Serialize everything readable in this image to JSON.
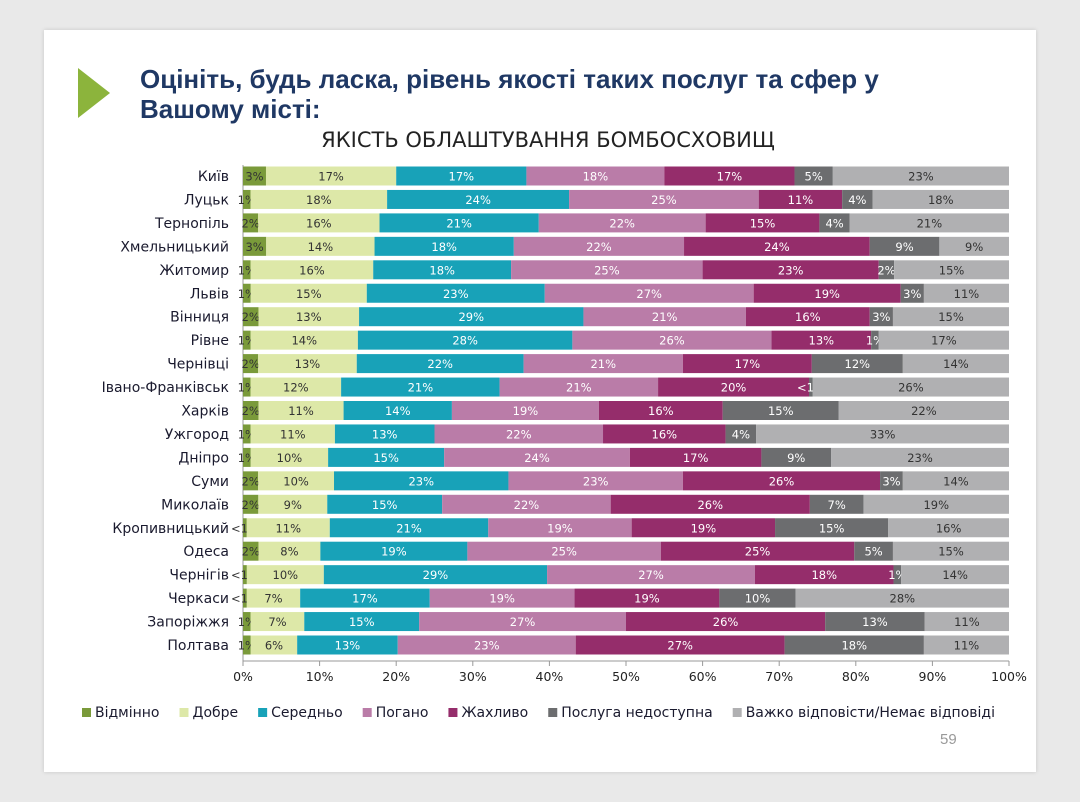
{
  "title": "Оцініть, будь ласка, рівень якості таких послуг та сфер у Вашому місті:",
  "page_number": "59",
  "chart_data": {
    "type": "bar",
    "orientation": "horizontal",
    "stacked": true,
    "title": "ЯКІСТЬ ОБЛАШТУВАННЯ  БОМБОСХОВИЩ",
    "xlim": [
      0,
      100
    ],
    "x_ticks": [
      "0%",
      "10%",
      "20%",
      "30%",
      "40%",
      "50%",
      "60%",
      "70%",
      "80%",
      "90%",
      "100%"
    ],
    "legend_position": "bottom",
    "categories": [
      "Київ",
      "Луцьк",
      "Тернопіль",
      "Хмельницький",
      "Житомир",
      "Львів",
      "Вінниця",
      "Рівне",
      "Чернівці",
      "Івано-Франківськ",
      "Харків",
      "Ужгород",
      "Дніпро",
      "Суми",
      "Миколаїв",
      "Кропивницький",
      "Одеса",
      "Чернігів",
      "Черкаси",
      "Запоріжжя",
      "Полтава"
    ],
    "series": [
      {
        "name": "Відмінно",
        "color": "#7a9a3a",
        "values": [
          3,
          1,
          2,
          3,
          1,
          1,
          2,
          1,
          2,
          1,
          2,
          1,
          1,
          2,
          2,
          0.5,
          2,
          0.5,
          0.5,
          1,
          1
        ],
        "labels": [
          "3%",
          "1%",
          "2%",
          "3%",
          "1%",
          "1%",
          "2%",
          "1%",
          "2%",
          "1%",
          "2%",
          "1%",
          "1%",
          "2%",
          "2%",
          "<1%",
          "2%",
          "<1%",
          "<1%",
          "1%",
          "1%"
        ]
      },
      {
        "name": "Добре",
        "color": "#dde8a8",
        "values": [
          17,
          18,
          16,
          14,
          16,
          15,
          13,
          14,
          13,
          12,
          11,
          11,
          10,
          10,
          9,
          11,
          8,
          10,
          7,
          7,
          6
        ]
      },
      {
        "name": "Середньо",
        "color": "#18a2b8",
        "values": [
          17,
          24,
          21,
          18,
          18,
          23,
          29,
          28,
          22,
          21,
          14,
          13,
          15,
          23,
          15,
          21,
          19,
          29,
          17,
          15,
          13
        ]
      },
      {
        "name": "Погано",
        "color": "#ba7ca8",
        "values": [
          18,
          25,
          22,
          22,
          25,
          27,
          21,
          26,
          21,
          21,
          19,
          22,
          24,
          23,
          22,
          19,
          25,
          27,
          19,
          27,
          23
        ]
      },
      {
        "name": "Жахливо",
        "color": "#952d6b",
        "values": [
          17,
          11,
          15,
          24,
          23,
          19,
          16,
          13,
          17,
          20,
          16,
          16,
          17,
          26,
          26,
          19,
          25,
          18,
          19,
          26,
          27
        ]
      },
      {
        "name": "Послуга недоступна",
        "color": "#6c6d6f",
        "values": [
          5,
          4,
          4,
          9,
          2,
          3,
          3,
          1,
          12,
          0.5,
          15,
          4,
          9,
          3,
          7,
          15,
          5,
          1,
          10,
          13,
          18
        ],
        "labels": [
          "5%",
          "4%",
          "4%",
          "9%",
          "2%",
          "3%",
          "3%",
          "1%",
          "12%",
          "<1%",
          "15%",
          "4%",
          "9%",
          "3%",
          "7%",
          "15%",
          "5%",
          "1%",
          "10%",
          "13%",
          "18%"
        ]
      },
      {
        "name": "Важко відповісти/Немає відповіді",
        "color": "#b0b0b2",
        "values": [
          23,
          18,
          21,
          9,
          15,
          11,
          15,
          17,
          14,
          26,
          22,
          33,
          23,
          14,
          19,
          16,
          15,
          14,
          28,
          11,
          11
        ]
      }
    ]
  }
}
